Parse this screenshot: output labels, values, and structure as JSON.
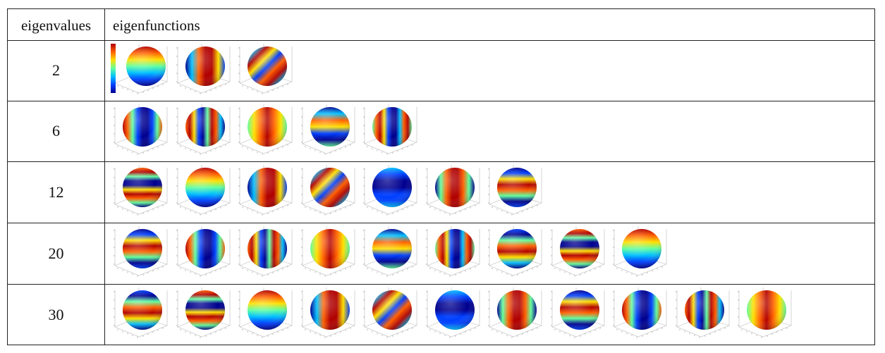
{
  "table": {
    "header_left": "eigenvalues",
    "header_right": "eigenfunctions",
    "rows": [
      {
        "eigenvalue": "2",
        "count": 3
      },
      {
        "eigenvalue": "6",
        "count": 5
      },
      {
        "eigenvalue": "12",
        "count": 7
      },
      {
        "eigenvalue": "20",
        "count": 9
      },
      {
        "eigenvalue": "30",
        "count": 11
      }
    ]
  },
  "colormap": [
    "#00008f",
    "#0040ff",
    "#00c0ff",
    "#60ff9f",
    "#ffe000",
    "#ff6000",
    "#b00000"
  ]
}
